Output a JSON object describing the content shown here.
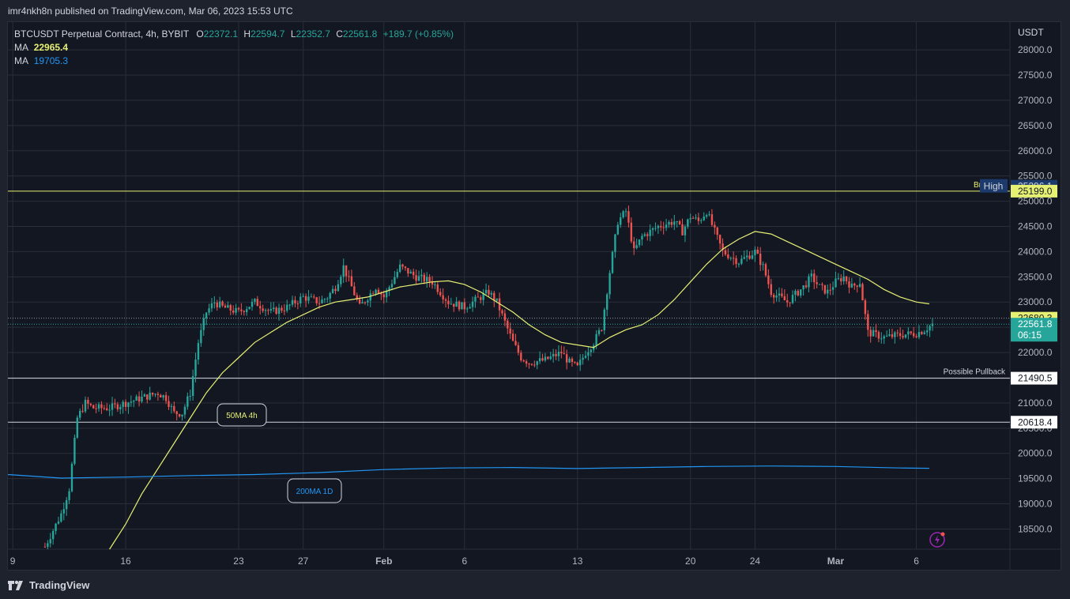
{
  "header": {
    "published": "imr4nkh8n published on TradingView.com, Mar 06, 2023 15:53 UTC"
  },
  "legend": {
    "symbol": "BTCUSDT Perpetual Contract, 4h, BYBIT",
    "o_label": "O",
    "o_value": "22372.1",
    "h_label": "H",
    "h_value": "22594.7",
    "l_label": "L",
    "l_value": "22352.7",
    "c_label": "C",
    "c_value": "22561.8",
    "change": "+189.7 (+0.85%)",
    "ma1_label": "MA",
    "ma1_value": "22965.4",
    "ma2_label": "MA",
    "ma2_value": "19705.3"
  },
  "footer": {
    "brand": "TradingView"
  },
  "colors": {
    "up": "#26a69a",
    "down": "#ef5350",
    "ma50": "#e6f073",
    "ma200": "#2196f3",
    "grid": "#2a2e39",
    "hline": "#d1d4dc",
    "breakout_line": "#e6f073"
  },
  "chart_data": {
    "type": "candlestick",
    "title": "BTCUSDT Perpetual Contract, 4h, BYBIT",
    "ylabel": "USDT",
    "ylim": [
      18100,
      28550
    ],
    "y_ticks": [
      18500,
      19000,
      19500,
      20000,
      20500,
      21000,
      21500,
      22000,
      22500,
      23000,
      23500,
      24000,
      24500,
      25000,
      25500,
      26000,
      26500,
      27000,
      27500,
      28000
    ],
    "y_tick_labels": [
      "18500.0",
      "19000.0",
      "19500.0",
      "20000.0",
      "20500.0",
      "21000.0",
      "21500.0",
      "22000.0",
      "22500.0",
      "23000.0",
      "23500.0",
      "24000.0",
      "24500.0",
      "25000.0",
      "25500.0",
      "26000.0",
      "26500.0",
      "27000.0",
      "27500.0",
      "28000.0"
    ],
    "x_ticks": [
      {
        "label": "9",
        "day": 9
      },
      {
        "label": "16",
        "day": 16
      },
      {
        "label": "23",
        "day": 23
      },
      {
        "label": "27",
        "day": 27
      },
      {
        "label": "Feb",
        "day": 32
      },
      {
        "label": "6",
        "day": 37
      },
      {
        "label": "13",
        "day": 44
      },
      {
        "label": "20",
        "day": 51
      },
      {
        "label": "24",
        "day": 55
      },
      {
        "label": "Mar",
        "day": 60
      },
      {
        "label": "6",
        "day": 65
      }
    ],
    "x_range_days": [
      8.7,
      70.8
    ],
    "close_series": [
      [
        11,
        18150
      ],
      [
        12,
        18800
      ],
      [
        12.5,
        19300
      ],
      [
        13,
        20700
      ],
      [
        13.5,
        21000
      ],
      [
        14,
        20900
      ],
      [
        15,
        20900
      ],
      [
        16,
        21000
      ],
      [
        17,
        21100
      ],
      [
        18,
        21200
      ],
      [
        18.5,
        21100
      ],
      [
        19,
        20800
      ],
      [
        19.5,
        20800
      ],
      [
        20,
        21200
      ],
      [
        20.5,
        22200
      ],
      [
        21,
        22800
      ],
      [
        21.5,
        23000
      ],
      [
        22,
        22900
      ],
      [
        23,
        22800
      ],
      [
        23.5,
        22900
      ],
      [
        24,
        23000
      ],
      [
        25,
        22800
      ],
      [
        26,
        22900
      ],
      [
        27,
        23100
      ],
      [
        28,
        23000
      ],
      [
        28.5,
        23100
      ],
      [
        29,
        23300
      ],
      [
        29.5,
        23700
      ],
      [
        30,
        23300
      ],
      [
        30.5,
        22900
      ],
      [
        31,
        23100
      ],
      [
        31.5,
        23300
      ],
      [
        32,
        23100
      ],
      [
        32.5,
        23400
      ],
      [
        33,
        23700
      ],
      [
        34,
        23500
      ],
      [
        35,
        23400
      ],
      [
        36,
        23000
      ],
      [
        37,
        22900
      ],
      [
        38,
        23100
      ],
      [
        38.5,
        23200
      ],
      [
        39,
        23000
      ],
      [
        39.5,
        22600
      ],
      [
        40,
        22200
      ],
      [
        40.5,
        21900
      ],
      [
        41,
        21800
      ],
      [
        42,
        21850
      ],
      [
        43,
        22000
      ],
      [
        43.5,
        21800
      ],
      [
        44,
        21700
      ],
      [
        44.5,
        22000
      ],
      [
        45,
        22200
      ],
      [
        45.5,
        22500
      ],
      [
        46,
        23600
      ],
      [
        46.5,
        24600
      ],
      [
        47,
        24800
      ],
      [
        47.5,
        24000
      ],
      [
        48,
        24300
      ],
      [
        49,
        24500
      ],
      [
        50,
        24600
      ],
      [
        50.5,
        24400
      ],
      [
        51,
        24700
      ],
      [
        51.5,
        24600
      ],
      [
        52,
        24800
      ],
      [
        52.5,
        24400
      ],
      [
        53,
        24000
      ],
      [
        54,
        23800
      ],
      [
        55,
        24000
      ],
      [
        55.5,
        23700
      ],
      [
        56,
        23200
      ],
      [
        57,
        23000
      ],
      [
        58,
        23300
      ],
      [
        58.5,
        23500
      ],
      [
        59,
        23300
      ],
      [
        59.5,
        23200
      ],
      [
        60,
        23400
      ],
      [
        60.5,
        23500
      ],
      [
        61,
        23300
      ],
      [
        61.5,
        23400
      ],
      [
        62,
        22400
      ],
      [
        63,
        22300
      ],
      [
        64,
        22350
      ],
      [
        65,
        22380
      ],
      [
        65.5,
        22450
      ],
      [
        66,
        22560
      ]
    ],
    "series": [
      {
        "name": "MA",
        "label": "50MA 4h",
        "value": "22965.4",
        "points": [
          [
            15,
            18100
          ],
          [
            16,
            18600
          ],
          [
            17,
            19200
          ],
          [
            18,
            19700
          ],
          [
            19,
            20200
          ],
          [
            20,
            20700
          ],
          [
            21,
            21200
          ],
          [
            22,
            21600
          ],
          [
            23,
            21900
          ],
          [
            24,
            22200
          ],
          [
            25,
            22400
          ],
          [
            26,
            22600
          ],
          [
            27,
            22750
          ],
          [
            28,
            22900
          ],
          [
            29,
            23000
          ],
          [
            30,
            23050
          ],
          [
            31,
            23100
          ],
          [
            32,
            23200
          ],
          [
            33,
            23300
          ],
          [
            34,
            23350
          ],
          [
            35,
            23400
          ],
          [
            36,
            23420
          ],
          [
            37,
            23350
          ],
          [
            38,
            23200
          ],
          [
            39,
            23000
          ],
          [
            40,
            22800
          ],
          [
            41,
            22550
          ],
          [
            42,
            22350
          ],
          [
            43,
            22200
          ],
          [
            44,
            22150
          ],
          [
            45,
            22100
          ],
          [
            46,
            22300
          ],
          [
            47,
            22450
          ],
          [
            48,
            22550
          ],
          [
            49,
            22750
          ],
          [
            50,
            23050
          ],
          [
            51,
            23400
          ],
          [
            52,
            23750
          ],
          [
            53,
            24050
          ],
          [
            54,
            24250
          ],
          [
            55,
            24400
          ],
          [
            56,
            24350
          ],
          [
            57,
            24200
          ],
          [
            58,
            24050
          ],
          [
            59,
            23900
          ],
          [
            60,
            23750
          ],
          [
            61,
            23600
          ],
          [
            62,
            23450
          ],
          [
            63,
            23250
          ],
          [
            64,
            23100
          ],
          [
            65,
            23000
          ],
          [
            65.8,
            22965
          ]
        ]
      },
      {
        "name": "MA",
        "label": "200MA 1D",
        "value": "19705.3",
        "points": [
          [
            8.7,
            19580
          ],
          [
            12,
            19510
          ],
          [
            16,
            19530
          ],
          [
            20,
            19560
          ],
          [
            24,
            19580
          ],
          [
            28,
            19620
          ],
          [
            32,
            19680
          ],
          [
            36,
            19710
          ],
          [
            40,
            19720
          ],
          [
            44,
            19700
          ],
          [
            48,
            19720
          ],
          [
            52,
            19740
          ],
          [
            56,
            19750
          ],
          [
            60,
            19740
          ],
          [
            64,
            19710
          ],
          [
            65.8,
            19705
          ]
        ]
      }
    ],
    "horizontal_lines": [
      {
        "value": 25199.0,
        "label": "Breakout",
        "tag": "25199.0",
        "color": "#e6f073"
      },
      {
        "value": 21490.5,
        "label": "Possible Pullback",
        "tag": "21490.5",
        "color": "#d1d4dc"
      },
      {
        "value": 20618.4,
        "label": "",
        "tag": "20618.4",
        "color": "#d1d4dc"
      }
    ],
    "price_tags": [
      {
        "value": 25296.1,
        "text": "25296.1",
        "title": "High"
      },
      {
        "value": 22680.3,
        "text": "22680.3"
      },
      {
        "value": 22561.8,
        "text": "22561.8",
        "countdown": "06:15"
      }
    ]
  }
}
